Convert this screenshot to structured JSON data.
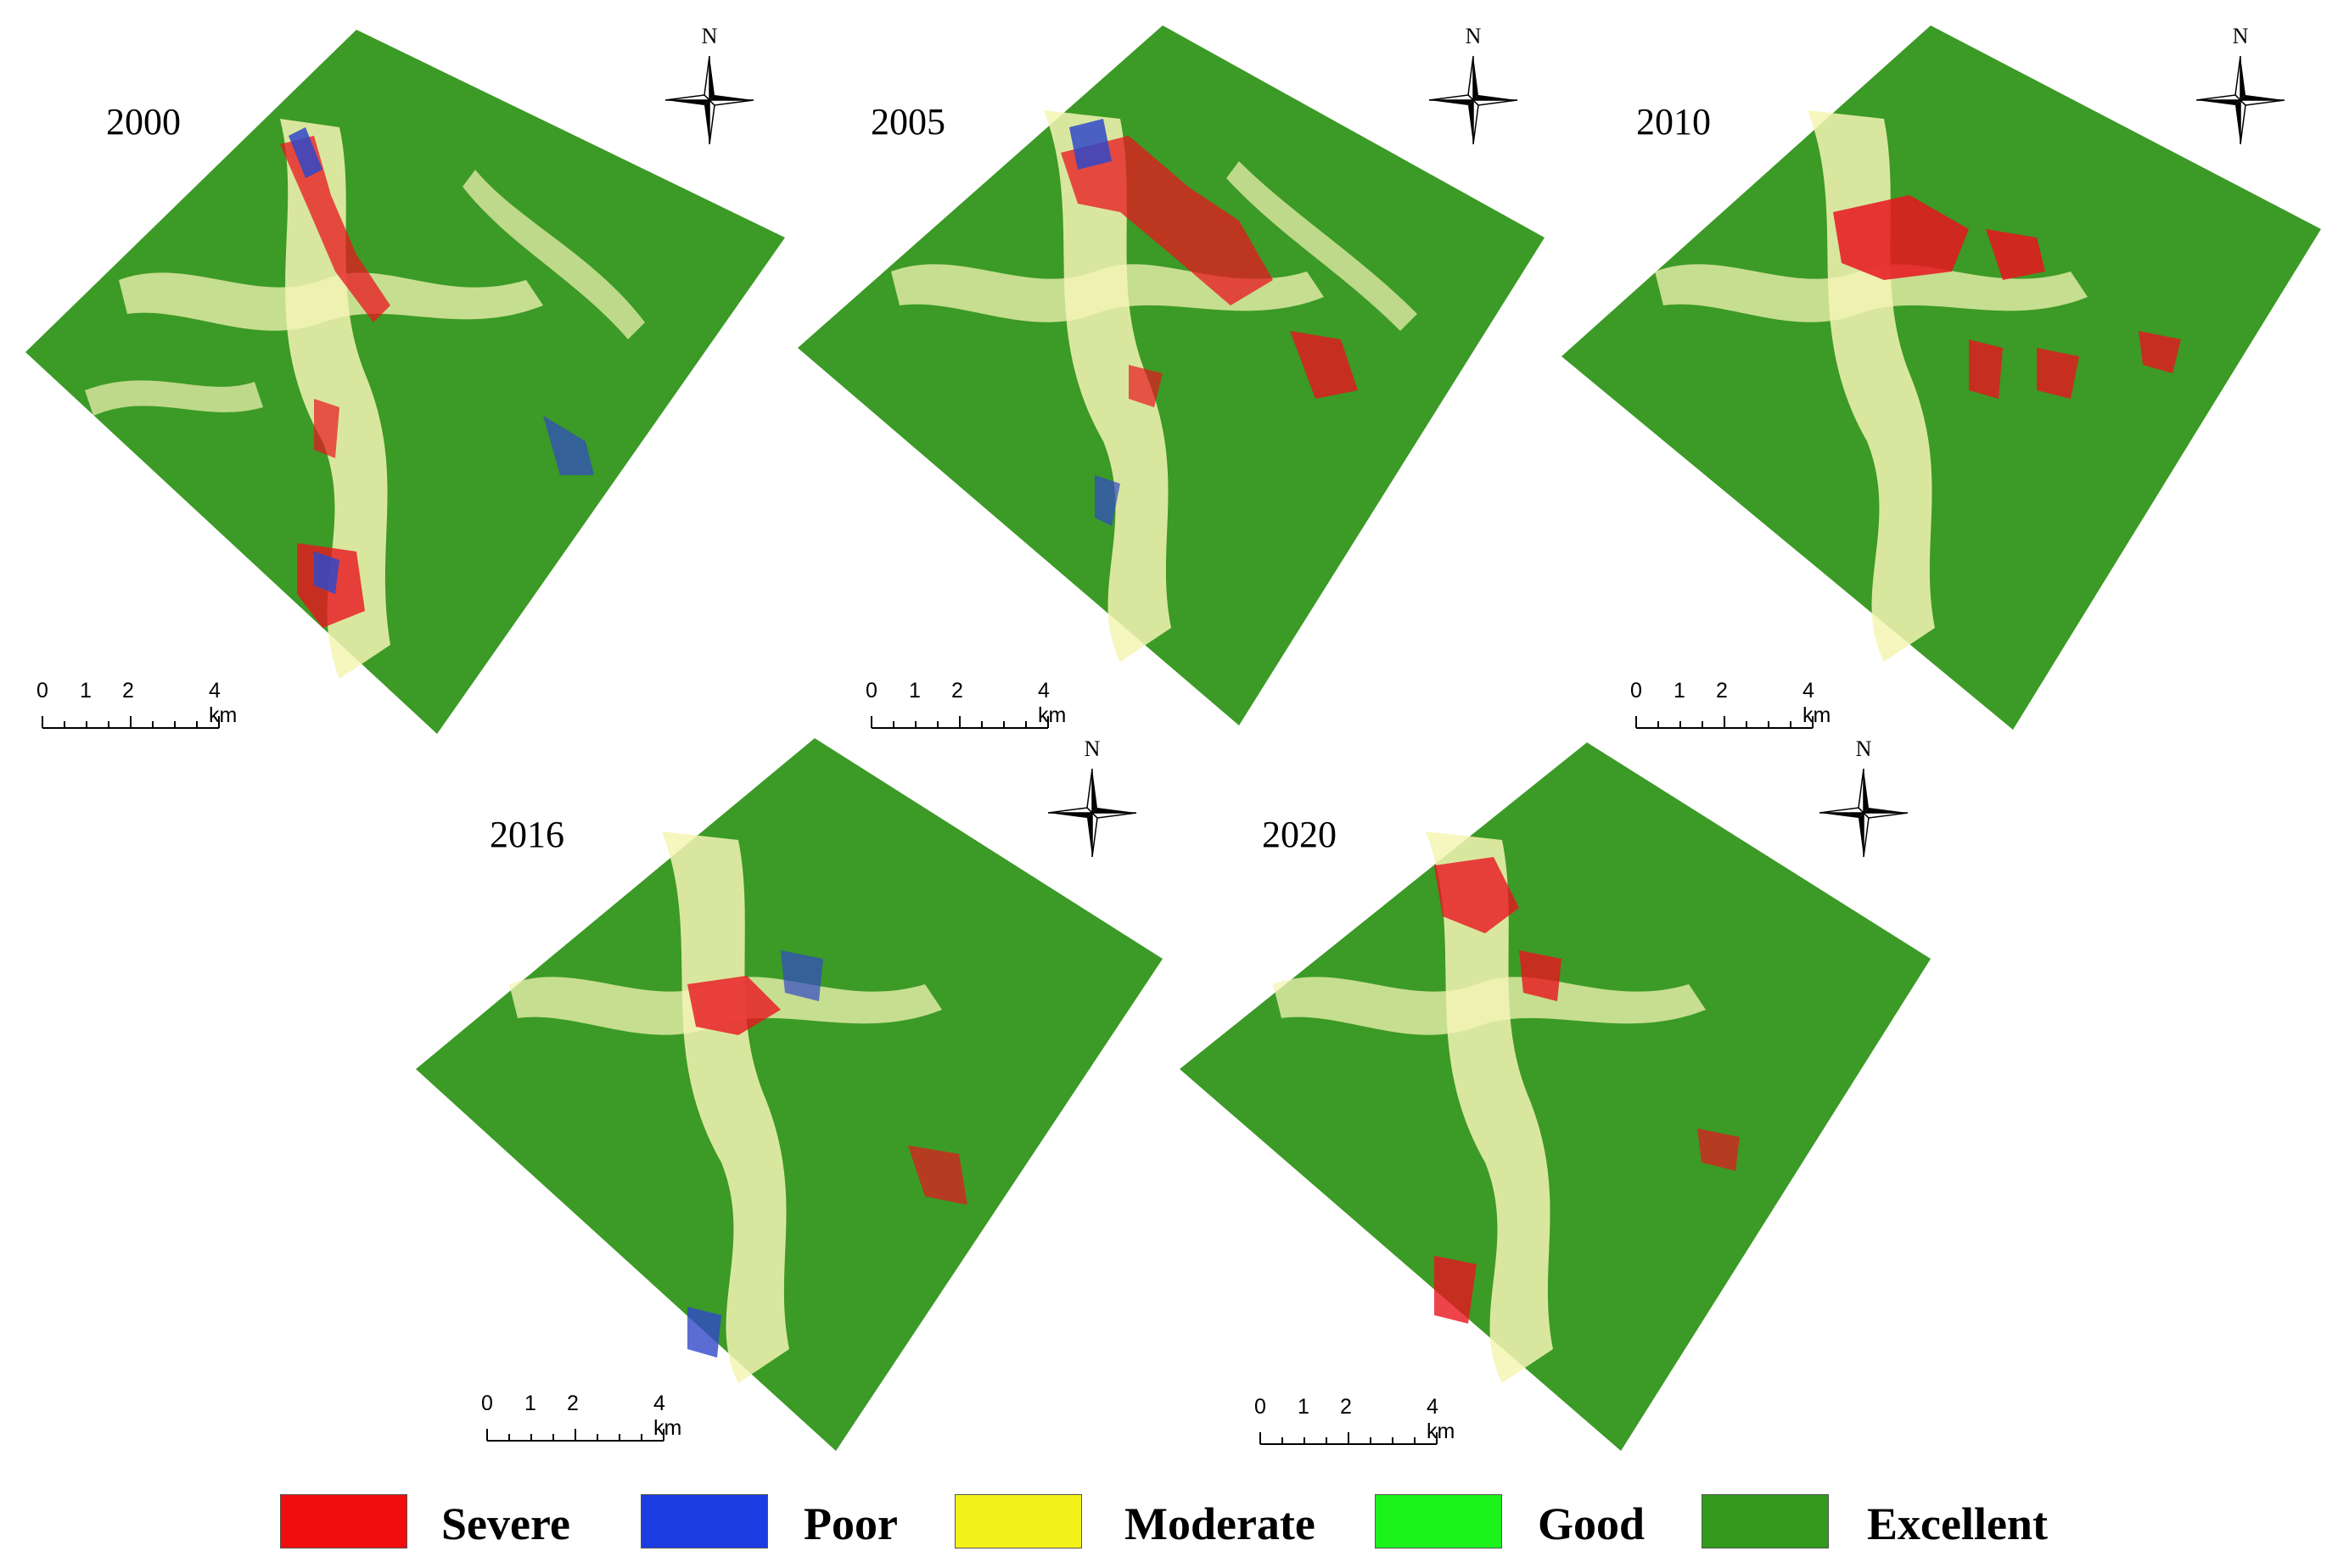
{
  "panels": [
    {
      "year": "2000"
    },
    {
      "year": "2005"
    },
    {
      "year": "2010"
    },
    {
      "year": "2016"
    },
    {
      "year": "2020"
    }
  ],
  "north_arrow_label": "N",
  "scale_bar": {
    "ticks": [
      "0",
      "1",
      "2",
      "4 km"
    ]
  },
  "legend": [
    {
      "label": "Severe",
      "color": "#f20d0d"
    },
    {
      "label": "Poor",
      "color": "#1c3be0"
    },
    {
      "label": "Moderate",
      "color": "#f3f218"
    },
    {
      "label": "Good",
      "color": "#1cf21c"
    },
    {
      "label": "Excellent",
      "color": "#339a1c"
    }
  ],
  "map_colors": {
    "excellent": "#3c9a26",
    "moderate": "#f4f4b4",
    "severe": "#e8141e",
    "poor": "#3048c8"
  }
}
